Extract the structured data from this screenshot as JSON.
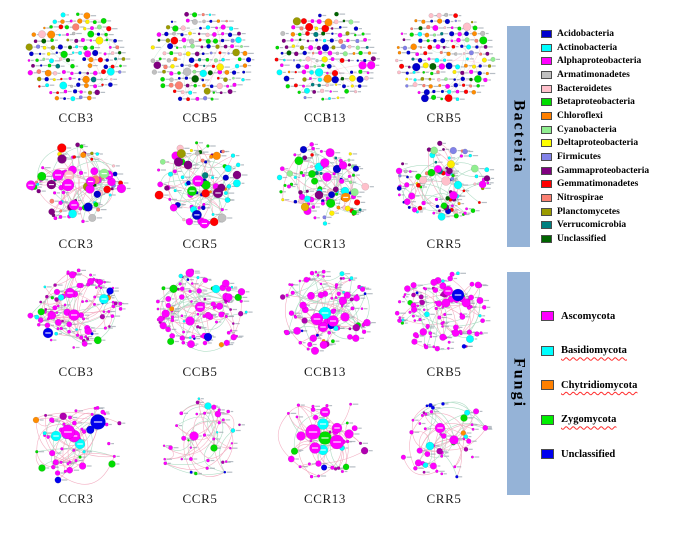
{
  "figure": {
    "sections": [
      {
        "name": "Bacteria",
        "legend": [
          {
            "label": "Acidobacteria",
            "color": "#0000CD"
          },
          {
            "label": "Actinobacteria",
            "color": "#00FFFF"
          },
          {
            "label": "Alphaproteobacteria",
            "color": "#FF00FF"
          },
          {
            "label": "Armatimonadetes",
            "color": "#C0C0C0"
          },
          {
            "label": "Bacteroidetes",
            "color": "#FFC0CB"
          },
          {
            "label": "Betaproteobacteria",
            "color": "#00DD00"
          },
          {
            "label": "Chloroflexi",
            "color": "#FF8000"
          },
          {
            "label": "Cyanobacteria",
            "color": "#90EE90"
          },
          {
            "label": "Deltaproteobacteria",
            "color": "#FFFF00"
          },
          {
            "label": "Firmicutes",
            "color": "#8282E8"
          },
          {
            "label": "Gammaproteobacteria",
            "color": "#800080"
          },
          {
            "label": "Gemmatimonadetes",
            "color": "#FF0000"
          },
          {
            "label": "Nitrospirae",
            "color": "#FA8072"
          },
          {
            "label": "Planctomycetes",
            "color": "#9B9B00"
          },
          {
            "label": "Verrucomicrobia",
            "color": "#008080"
          },
          {
            "label": "Unclassified",
            "color": "#006400"
          }
        ]
      },
      {
        "name": "Fungi",
        "legend": [
          {
            "label": "Ascomycota",
            "color": "#FF00FF",
            "misspell": false
          },
          {
            "label": "Basidiomycota",
            "color": "#00FFFF",
            "misspell": true
          },
          {
            "label": "Chytridiomycota",
            "color": "#FF8000",
            "misspell": true
          },
          {
            "label": "Zygomycota",
            "color": "#00EE00",
            "misspell": true
          },
          {
            "label": "Unclassified",
            "color": "#0000EE",
            "misspell": false
          }
        ]
      }
    ]
  },
  "edge_colors": {
    "pink": "#F2A8BE",
    "green": "#A9D9C0"
  },
  "palettes": {
    "bacteria_dense": [
      [
        "#0000CD",
        3
      ],
      [
        "#00FFFF",
        2
      ],
      [
        "#FF00FF",
        2.5
      ],
      [
        "#C0C0C0",
        1
      ],
      [
        "#FFC0CB",
        1.2
      ],
      [
        "#00DD00",
        2
      ],
      [
        "#FF8C00",
        1.5
      ],
      [
        "#90EE90",
        1
      ],
      [
        "#FFEE00",
        1.2
      ],
      [
        "#8282E8",
        0.8
      ],
      [
        "#800080",
        1
      ],
      [
        "#FF0000",
        1.8
      ],
      [
        "#FA8072",
        0.8
      ],
      [
        "#9B9B00",
        0.9
      ],
      [
        "#008080",
        0.5
      ],
      [
        "#006400",
        0.5
      ]
    ],
    "bacteria_sparse": [
      [
        "#FF00FF",
        5
      ],
      [
        "#00FFFF",
        2.5
      ],
      [
        "#0000CD",
        2
      ],
      [
        "#00DD00",
        2.5
      ],
      [
        "#800080",
        1.5
      ],
      [
        "#FFC0CB",
        0.8
      ],
      [
        "#FF8C00",
        0.7
      ],
      [
        "#FF0000",
        0.8
      ],
      [
        "#90EE90",
        0.8
      ],
      [
        "#C0C0C0",
        0.5
      ],
      [
        "#FFEE00",
        0.5
      ],
      [
        "#FA8072",
        0.6
      ],
      [
        "#8282E8",
        0.5
      ],
      [
        "#9B9B00",
        0.3
      ],
      [
        "#008080",
        0.3
      ],
      [
        "#006400",
        0.3
      ]
    ],
    "fungi_dense": [
      [
        "#FF00FF",
        16
      ],
      [
        "#B000B0",
        2
      ],
      [
        "#00FFFF",
        1.2
      ],
      [
        "#0000EE",
        1
      ],
      [
        "#00DD00",
        0.8
      ],
      [
        "#FF8C00",
        0.4
      ]
    ],
    "fungi_sparse": [
      [
        "#FF00FF",
        14
      ],
      [
        "#B000B0",
        2
      ],
      [
        "#00FFFF",
        1.5
      ],
      [
        "#0000EE",
        1
      ],
      [
        "#00DD00",
        1.2
      ],
      [
        "#FF8C00",
        0.4
      ]
    ]
  },
  "networks": [
    {
      "section": "Bacteria",
      "label": "CCB3",
      "style": "grid",
      "seed": 101,
      "palette": "bacteria_dense",
      "edges": 12,
      "bend": 0.25,
      "pink_ratio": 0.5
    },
    {
      "section": "Bacteria",
      "label": "CCB5",
      "style": "grid",
      "seed": 102,
      "palette": "bacteria_dense",
      "edges": 12,
      "bend": 0.25,
      "pink_ratio": 0.5
    },
    {
      "section": "Bacteria",
      "label": "CCB13",
      "style": "grid",
      "seed": 103,
      "palette": "bacteria_dense",
      "edges": 12,
      "bend": 0.25,
      "pink_ratio": 0.5
    },
    {
      "section": "Bacteria",
      "label": "CRB5",
      "style": "grid",
      "seed": 104,
      "palette": "bacteria_dense",
      "edges": 12,
      "bend": 0.25,
      "pink_ratio": 0.5
    },
    {
      "section": "Bacteria",
      "label": "CCR3",
      "style": "scatter",
      "seed": 201,
      "palette": "bacteria_sparse",
      "nodes": 78,
      "rmin": 1.4,
      "rmax": 5.2,
      "edges": 55,
      "bend": 0.45,
      "pink_ratio": 0.55,
      "features": [
        [
          -18,
          -8,
          5.5,
          "#FF00FF"
        ],
        [
          -8,
          2,
          6,
          "#FF00FF"
        ],
        [
          -2,
          22,
          5,
          "#FF00FF"
        ],
        [
          -14,
          -24,
          4.5,
          "#800080"
        ],
        [
          14,
          6,
          4.5,
          "#FF00FF"
        ]
      ]
    },
    {
      "section": "Bacteria",
      "label": "CCR5",
      "style": "scatter",
      "seed": 202,
      "palette": "bacteria_sparse",
      "nodes": 72,
      "rmin": 1.4,
      "rmax": 4.8,
      "edges": 50,
      "bend": 0.45,
      "pink_ratio": 0.45,
      "features": [
        [
          -2,
          -2,
          5.5,
          "#FF00FF"
        ],
        [
          -8,
          8,
          4.8,
          "#00DD00"
        ],
        [
          18,
          10,
          5,
          "#800080"
        ],
        [
          6,
          2,
          4.5,
          "#00DD00"
        ],
        [
          -12,
          -18,
          4.2,
          "#800080"
        ]
      ]
    },
    {
      "section": "Bacteria",
      "label": "CCR13",
      "style": "scatter",
      "seed": 203,
      "palette": "bacteria_sparse",
      "nodes": 88,
      "rmin": 1.4,
      "rmax": 4.6,
      "edges": 50,
      "bend": 0.45,
      "pink_ratio": 0.5,
      "features": [
        [
          2,
          -6,
          4.5,
          "#FF00FF"
        ],
        [
          12,
          -14,
          4,
          "#0000CD"
        ],
        [
          -6,
          12,
          4.2,
          "#800080"
        ],
        [
          20,
          8,
          4,
          "#00FFFF"
        ],
        [
          -20,
          24,
          4,
          "#E8B000"
        ]
      ]
    },
    {
      "section": "Bacteria",
      "label": "CRR5",
      "style": "scatter",
      "seed": 204,
      "palette": "bacteria_sparse",
      "nodes": 88,
      "rmin": 1.3,
      "rmax": 4.2,
      "edges": 45,
      "bend": 0.45,
      "pink_ratio": 0.5,
      "features": [
        [
          2,
          -2,
          4.5,
          "#FFC0CB"
        ],
        [
          14,
          2,
          4,
          "#00FFFF"
        ],
        [
          -6,
          -14,
          3.8,
          "#FF00FF"
        ]
      ]
    },
    {
      "section": "Fungi",
      "label": "CCB3",
      "style": "scatter",
      "seed": 301,
      "palette": "fungi_dense",
      "nodes": 95,
      "rmin": 1.2,
      "rmax": 4.2,
      "edges": 60,
      "bend": 0.4,
      "pink_ratio": 0.62,
      "features": [
        [
          -6,
          -18,
          5,
          "#FF00FF"
        ],
        [
          -2,
          4,
          5.5,
          "#FF00FF"
        ],
        [
          28,
          -12,
          4.8,
          "#00FFFF"
        ],
        [
          -28,
          22,
          5,
          "#0000EE"
        ],
        [
          34,
          -20,
          3.5,
          "#0000EE"
        ]
      ]
    },
    {
      "section": "Fungi",
      "label": "CCB5",
      "style": "scatter",
      "seed": 302,
      "palette": "fungi_dense",
      "nodes": 95,
      "rmin": 1.2,
      "rmax": 4.2,
      "edges": 55,
      "bend": 0.4,
      "pink_ratio": 0.55,
      "features": [
        [
          0,
          -4,
          5,
          "#FF00FF"
        ],
        [
          -10,
          10,
          4.5,
          "#FF00FF"
        ],
        [
          16,
          -22,
          4,
          "#00FFFF"
        ],
        [
          8,
          26,
          4,
          "#0000EE"
        ]
      ]
    },
    {
      "section": "Fungi",
      "label": "CCB13",
      "style": "scatter",
      "seed": 303,
      "palette": "fungi_dense",
      "nodes": 88,
      "rmin": 1.2,
      "rmax": 4,
      "edges": 55,
      "bend": 0.4,
      "pink_ratio": 0.6,
      "features": [
        [
          0,
          2,
          6,
          "#00FFFF"
        ],
        [
          -8,
          8,
          6,
          "#FF00FF"
        ],
        [
          8,
          10,
          5.5,
          "#FF00FF"
        ],
        [
          -2,
          16,
          5,
          "#FF00FF"
        ],
        [
          20,
          6,
          4.5,
          "#FF00FF"
        ]
      ]
    },
    {
      "section": "Fungi",
      "label": "CRB5",
      "style": "scatter",
      "seed": 304,
      "palette": "fungi_dense",
      "nodes": 100,
      "rmin": 1.2,
      "rmax": 3.8,
      "edges": 45,
      "bend": 0.4,
      "pink_ratio": 0.55,
      "features": [
        [
          14,
          -16,
          6,
          "#0000EE"
        ],
        [
          4,
          -20,
          4.8,
          "#FF00FF"
        ],
        [
          22,
          -8,
          4.2,
          "#FF00FF"
        ],
        [
          2,
          -8,
          4.2,
          "#FF00FF"
        ],
        [
          26,
          28,
          3.8,
          "#00FFFF"
        ]
      ]
    },
    {
      "section": "Fungi",
      "label": "CCR3",
      "style": "scatter",
      "seed": 401,
      "palette": "fungi_sparse",
      "nodes": 46,
      "rmin": 1.4,
      "rmax": 4,
      "edges": 60,
      "bend": 0.55,
      "pink_ratio": 0.72,
      "features": [
        [
          -8,
          -6,
          7,
          "#FF00FF"
        ],
        [
          22,
          -16,
          7.5,
          "#0000EE"
        ],
        [
          -20,
          -2,
          5,
          "#00FFFF"
        ],
        [
          4,
          6,
          5,
          "#00FFFF"
        ],
        [
          -2,
          -2,
          6,
          "#FF00FF"
        ],
        [
          -34,
          30,
          3.5,
          "#00DD00"
        ],
        [
          36,
          26,
          3.5,
          "#00DD00"
        ],
        [
          -40,
          -18,
          3,
          "#FF8C00"
        ],
        [
          -18,
          42,
          3.2,
          "#0000EE"
        ]
      ]
    },
    {
      "section": "Fungi",
      "label": "CCR5",
      "style": "scatter",
      "seed": 402,
      "palette": "fungi_sparse",
      "nodes": 36,
      "rmin": 1.1,
      "rmax": 2.6,
      "edges": 40,
      "bend": 0.95,
      "pink_ratio": 0.6,
      "features": [
        [
          -6,
          -2,
          4.5,
          "#FF00FF"
        ],
        [
          14,
          10,
          3.5,
          "#00DD00"
        ],
        [
          8,
          -32,
          3.5,
          "#00FFFF"
        ],
        [
          18,
          -24,
          3.2,
          "#FF00FF"
        ]
      ]
    },
    {
      "section": "Fungi",
      "label": "CCR13",
      "style": "scatter",
      "seed": 403,
      "palette": "fungi_sparse",
      "nodes": 40,
      "rmin": 1.3,
      "rmax": 3.6,
      "edges": 55,
      "bend": 0.55,
      "pink_ratio": 0.85,
      "features": [
        [
          0,
          0,
          6.5,
          "#00DD00"
        ],
        [
          -12,
          -6,
          7.5,
          "#FF00FF"
        ],
        [
          12,
          4,
          7,
          "#FF00FF"
        ],
        [
          -10,
          10,
          5.5,
          "#FF00FF"
        ],
        [
          12,
          -10,
          5,
          "#FF00FF"
        ],
        [
          -2,
          -14,
          5.5,
          "#00FFFF"
        ],
        [
          -2,
          12,
          5,
          "#00FFFF"
        ],
        [
          0,
          -26,
          5,
          "#FF00FF"
        ],
        [
          24,
          -4,
          4.5,
          "#FF00FF"
        ],
        [
          -24,
          -2,
          4.5,
          "#FF00FF"
        ]
      ]
    },
    {
      "section": "Fungi",
      "label": "CRR5",
      "style": "scatter",
      "seed": 404,
      "palette": "fungi_sparse",
      "nodes": 48,
      "rmin": 1.3,
      "rmax": 3.4,
      "edges": 45,
      "bend": 0.55,
      "pink_ratio": 0.7,
      "features": [
        [
          -4,
          -10,
          5,
          "#FF00FF"
        ],
        [
          10,
          2,
          4.5,
          "#FF00FF"
        ],
        [
          -14,
          8,
          4,
          "#00FFFF"
        ],
        [
          20,
          -20,
          3.5,
          "#00DD00"
        ]
      ]
    }
  ]
}
